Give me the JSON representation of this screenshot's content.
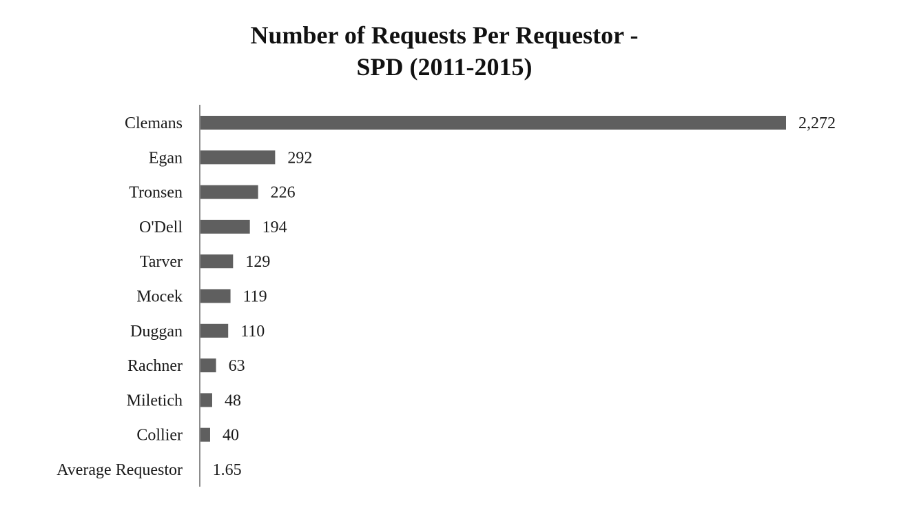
{
  "chart_data": {
    "type": "bar",
    "orientation": "horizontal",
    "title": "Number of Requests Per Requestor - SPD (2011-2015)",
    "title_lines": [
      "Number of  Requests Per Requestor -",
      "SPD (2011-2015)"
    ],
    "categories": [
      "Clemans",
      "Egan",
      "Tronsen",
      "O'Dell",
      "Tarver",
      "Mocek",
      "Duggan",
      "Rachner",
      "Miletich",
      "Collier",
      "Average Requestor"
    ],
    "values": [
      2272,
      292,
      226,
      194,
      129,
      119,
      110,
      63,
      48,
      40,
      1.65
    ],
    "value_labels": [
      "2,272",
      "292",
      "226",
      "194",
      "129",
      "119",
      "110",
      "63",
      "48",
      "40",
      "1.65"
    ],
    "xlabel": "",
    "ylabel": "",
    "xlim": [
      0,
      2272
    ],
    "grid": false,
    "legend": "none",
    "bar_color": "#5f5f5f",
    "axis_color": "#8c8c8c"
  }
}
